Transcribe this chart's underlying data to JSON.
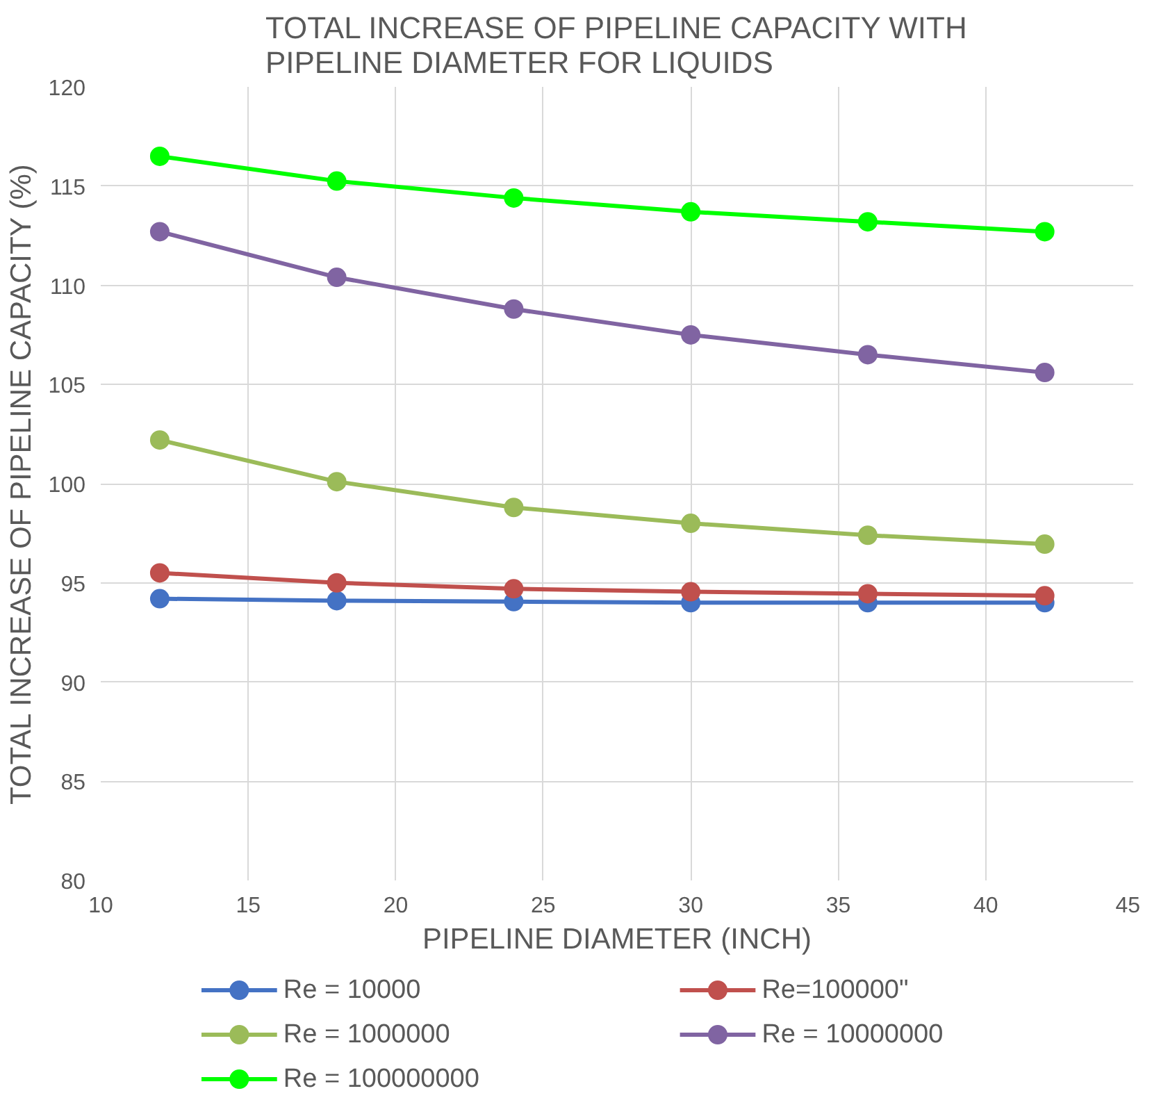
{
  "chart_data": {
    "type": "line",
    "title": "TOTAL INCREASE OF PIPELINE CAPACITY WITH PIPELINE DIAMETER FOR LIQUIDS",
    "xlabel": "PIPELINE DIAMETER (INCH)",
    "ylabel": "TOTAL INCREASE OF PIPELINE CAPACITY (%)",
    "x": [
      12,
      18,
      24,
      30,
      36,
      42
    ],
    "series": [
      {
        "name": "Re = 10000",
        "color": "#4472c4",
        "values": [
          94.2,
          94.1,
          94.05,
          94.0,
          94.0,
          94.0
        ]
      },
      {
        "name": "Re=100000\"",
        "color": "#c0504d",
        "values": [
          95.5,
          95.0,
          94.7,
          94.55,
          94.45,
          94.35
        ]
      },
      {
        "name": "Re = 1000000",
        "color": "#9bbb59",
        "values": [
          102.2,
          100.1,
          98.8,
          98.0,
          97.4,
          96.95
        ]
      },
      {
        "name": "Re = 10000000",
        "color": "#8064a2",
        "values": [
          112.7,
          110.4,
          108.8,
          107.5,
          106.5,
          105.6
        ]
      },
      {
        "name": "Re = 100000000",
        "color": "#00ff00",
        "values": [
          116.5,
          115.25,
          114.4,
          113.7,
          113.2,
          112.7
        ]
      }
    ],
    "xlim": [
      10,
      45
    ],
    "xticks": [
      10,
      15,
      20,
      25,
      30,
      35,
      40,
      45
    ],
    "ylim": [
      80,
      120
    ],
    "yticks": [
      80,
      85,
      90,
      95,
      100,
      105,
      110,
      115,
      120
    ],
    "grid": true,
    "legend": "bottom",
    "marker": "circle",
    "line_style": "solid"
  }
}
